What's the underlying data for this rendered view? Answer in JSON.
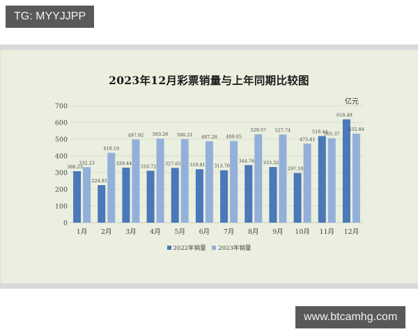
{
  "watermarks": {
    "top_left": "TG: MYYJJPP",
    "bottom_right": "www.btcamhg.com"
  },
  "colors": {
    "series_2022": "#4a78b8",
    "series_2023": "#93b0da",
    "panel_bg": "#ebefdf",
    "band": "#d9d9d9",
    "badge_bg": "#595959"
  },
  "chart_data": {
    "type": "bar",
    "title": "2023年12月彩票销量与上年同期比较图",
    "unit": "亿元",
    "xlabel": "",
    "ylabel": "",
    "ylim": [
      0,
      700
    ],
    "yticks": [
      0,
      100,
      200,
      300,
      400,
      500,
      600,
      700
    ],
    "grid": true,
    "legend_position": "bottom",
    "categories": [
      "1月",
      "2月",
      "3月",
      "4月",
      "5月",
      "6月",
      "7月",
      "8月",
      "9月",
      "10月",
      "11月",
      "12月"
    ],
    "series": [
      {
        "name": "2022年销量",
        "values": [
          308.23,
          224.81,
          329.44,
          310.72,
          327.65,
          319.81,
          313.7,
          344.76,
          333.32,
          297.18,
          518.44,
          618.49
        ],
        "labels": [
          "308.23",
          "224.81",
          "329.44",
          "310.72",
          "327.65",
          "319.81",
          "313.70",
          "344.76",
          "333.32",
          "297.18",
          "518.44",
          "618.49"
        ]
      },
      {
        "name": "2023年销量",
        "values": [
          332.23,
          418.1,
          497.92,
          503.26,
          500.21,
          487.28,
          489.05,
          529.57,
          527.74,
          473.41,
          505.37,
          532.84
        ],
        "labels": [
          "332.23",
          "418.10",
          "497.92",
          "503.26",
          "500.21",
          "487.28",
          "489.05",
          "529.57",
          "527.74",
          "473.41",
          "505.37",
          "532.84"
        ]
      }
    ]
  }
}
